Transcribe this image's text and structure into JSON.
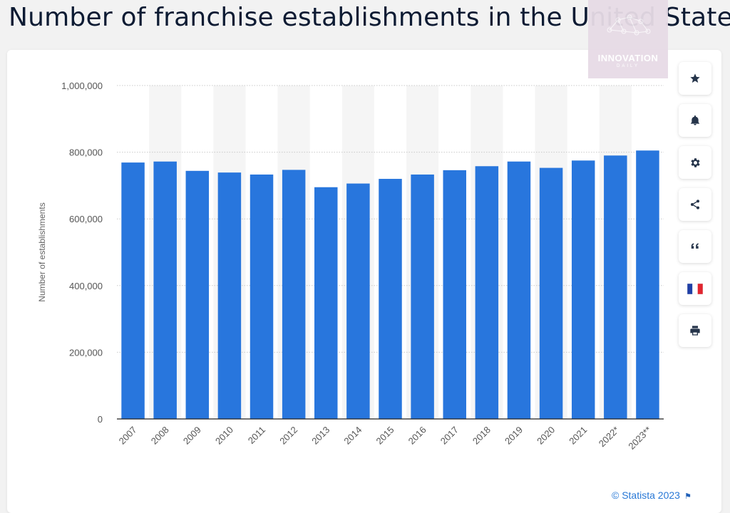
{
  "page": {
    "title": "Number of franchise establishments in the United States",
    "credit": "© Statista 2023"
  },
  "watermark": {
    "text": "INNOVATION",
    "subtext": "DAILY"
  },
  "toolbar": {
    "items": [
      {
        "icon": "star-icon"
      },
      {
        "icon": "bell-icon"
      },
      {
        "icon": "gear-icon"
      },
      {
        "icon": "share-icon"
      },
      {
        "icon": "quote-icon"
      },
      {
        "icon": "french-flag-icon"
      },
      {
        "icon": "print-icon"
      }
    ]
  },
  "colors": {
    "bar": "#2876dd",
    "title": "#0d1b33",
    "axis_text": "#555555",
    "credit": "#2878d6"
  },
  "chart_data": {
    "type": "bar",
    "title": "",
    "xlabel": "",
    "ylabel": "Number of establishments",
    "categories": [
      "2007",
      "2008",
      "2009",
      "2010",
      "2011",
      "2012",
      "2013",
      "2014",
      "2015",
      "2016",
      "2017",
      "2018",
      "2019",
      "2020",
      "2021",
      "2022*",
      "2023**"
    ],
    "values": [
      769000,
      772000,
      744000,
      739000,
      733000,
      747000,
      695000,
      706000,
      720000,
      733000,
      746000,
      758000,
      772000,
      753000,
      775000,
      790000,
      805000
    ],
    "ylim": [
      0,
      1000000
    ],
    "yticks": [
      0,
      200000,
      400000,
      600000,
      800000,
      1000000
    ],
    "ytick_labels": [
      "0",
      "200,000",
      "400,000",
      "600,000",
      "800,000",
      "1,000,000"
    ],
    "grid": true,
    "alternating_column_shading": true
  }
}
